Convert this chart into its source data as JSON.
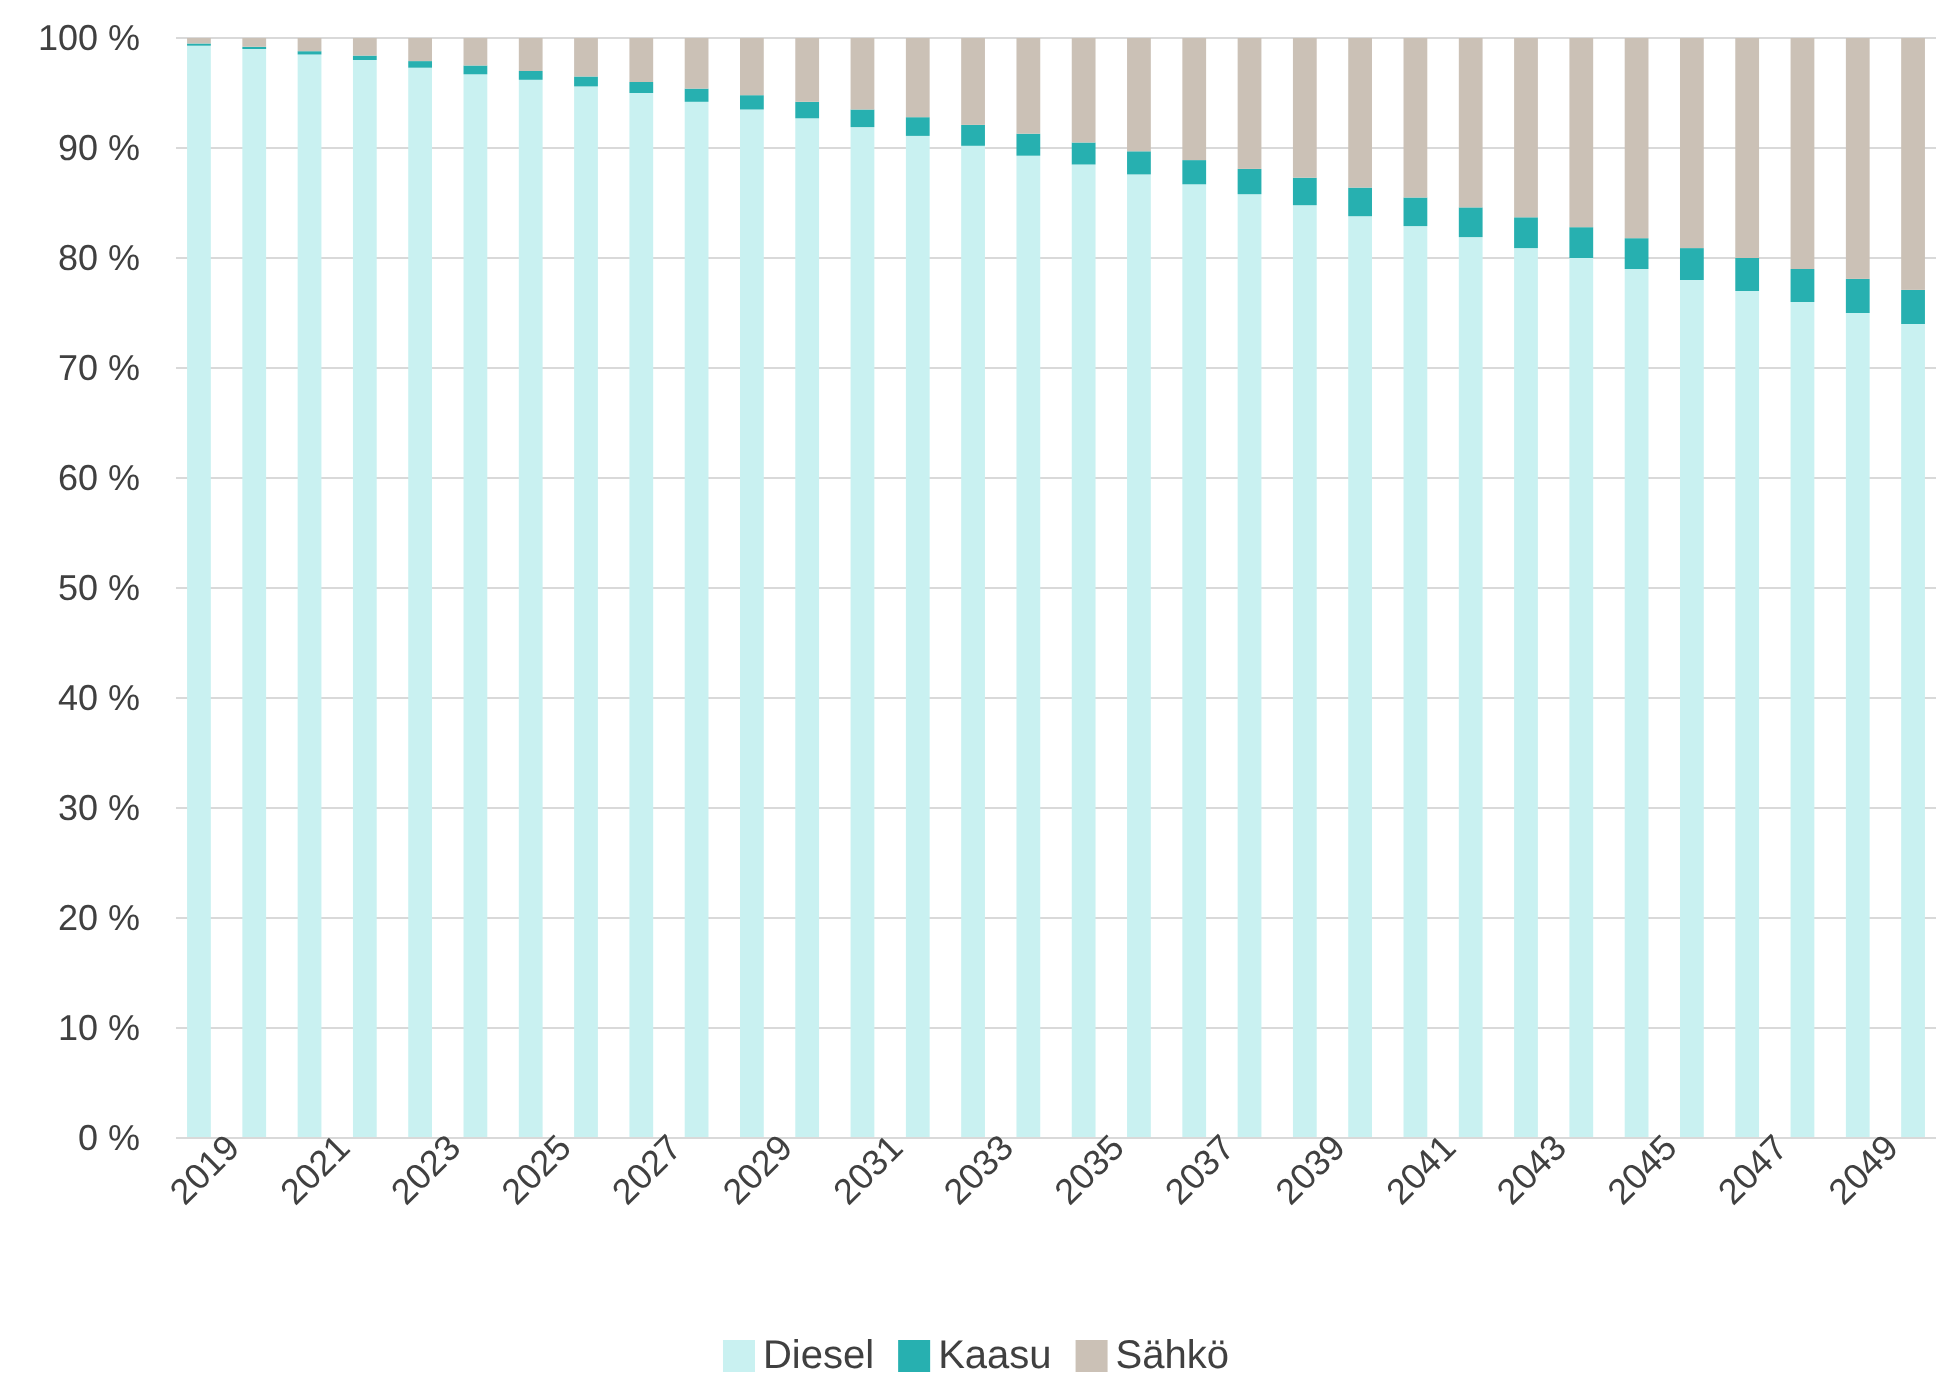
{
  "chart_data": {
    "type": "bar",
    "stacked": true,
    "categories": [
      "2019",
      null,
      "2021",
      null,
      "2023",
      null,
      "2025",
      null,
      "2027",
      null,
      "2029",
      null,
      "2031",
      null,
      "2033",
      null,
      "2035",
      null,
      "2037",
      null,
      "2039",
      null,
      "2041",
      null,
      "2043",
      null,
      "2045",
      null,
      "2047",
      null,
      "2049",
      null
    ],
    "series": [
      {
        "name": "Diesel",
        "color": "#c9f1f1",
        "values": [
          99.3,
          99,
          98.5,
          98,
          97.3,
          96.7,
          96.2,
          95.6,
          95,
          94.2,
          93.5,
          92.7,
          91.9,
          91.1,
          90.2,
          89.3,
          88.5,
          87.6,
          86.7,
          85.8,
          84.8,
          83.8,
          82.9,
          81.9,
          80.9,
          80,
          79,
          78,
          77,
          76,
          75,
          74
        ]
      },
      {
        "name": "Kaasu",
        "color": "#27b0b0",
        "values": [
          0.2,
          0.2,
          0.3,
          0.4,
          0.6,
          0.8,
          0.8,
          0.9,
          1.0,
          1.2,
          1.3,
          1.5,
          1.6,
          1.7,
          1.9,
          2.0,
          2.0,
          2.1,
          2.2,
          2.3,
          2.5,
          2.6,
          2.6,
          2.7,
          2.8,
          2.8,
          2.8,
          2.9,
          3.0,
          3.0,
          3.1,
          3.1
        ]
      },
      {
        "name": "Sähkö",
        "color": "#cbc1b6",
        "values": [
          0.5,
          0.8,
          1.2,
          1.6,
          2.1,
          2.5,
          3.0,
          3.5,
          4.0,
          4.6,
          5.2,
          5.8,
          6.5,
          7.2,
          7.9,
          8.7,
          9.5,
          10.3,
          11.1,
          11.9,
          12.7,
          13.6,
          14.5,
          15.4,
          16.3,
          17.2,
          18.2,
          19.1,
          20.0,
          21.0,
          21.9,
          22.9
        ]
      }
    ],
    "ylim": [
      0,
      100
    ],
    "yticks": [
      {
        "value": 0,
        "label": "0 %"
      },
      {
        "value": 10,
        "label": "10 %"
      },
      {
        "value": 20,
        "label": "20 %"
      },
      {
        "value": 30,
        "label": "30 %"
      },
      {
        "value": 40,
        "label": "40 %"
      },
      {
        "value": 50,
        "label": "50 %"
      },
      {
        "value": 60,
        "label": "60 %"
      },
      {
        "value": 70,
        "label": "70 %"
      },
      {
        "value": 80,
        "label": "80 %"
      },
      {
        "value": 90,
        "label": "90 %"
      },
      {
        "value": 100,
        "label": "100 %"
      }
    ],
    "grid": "y",
    "legend": "bottom"
  }
}
